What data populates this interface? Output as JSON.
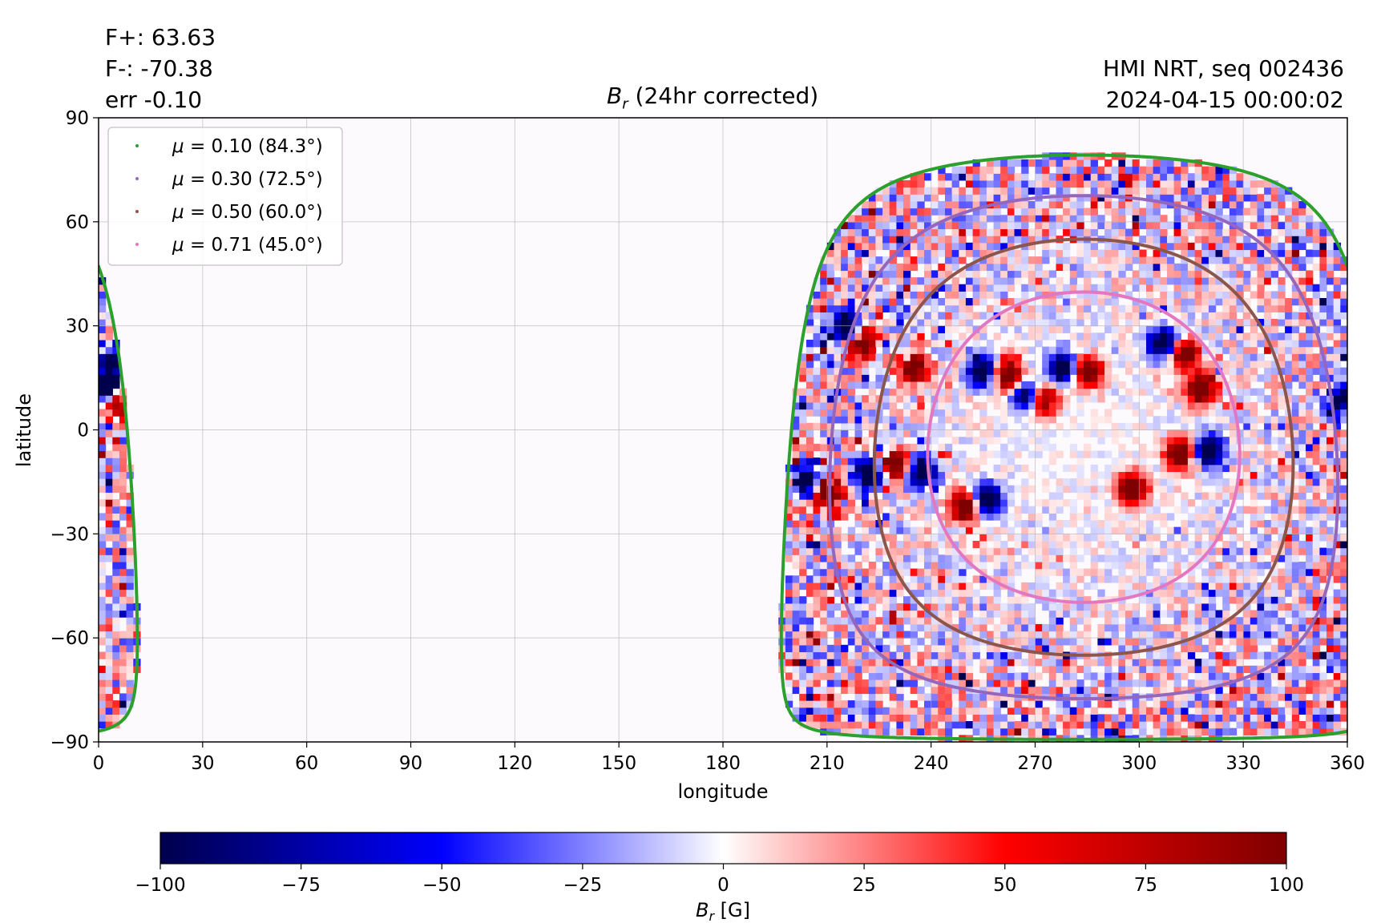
{
  "header": {
    "stats": [
      "F+: 63.63",
      "F-: -70.38",
      "err -0.10"
    ],
    "source": "HMI NRT, seq 002436",
    "timestamp": "2024-04-15 00:00:02",
    "title_symbol": "B",
    "title_subscript": "r",
    "title_rest": " (24hr corrected)"
  },
  "chart_data": {
    "type": "heatmap",
    "xlabel": "longitude",
    "ylabel": "latitude",
    "xlim": [
      0,
      360
    ],
    "ylim": [
      -90,
      90
    ],
    "xticks": [
      0,
      30,
      60,
      90,
      120,
      150,
      180,
      210,
      240,
      270,
      300,
      330,
      360
    ],
    "yticks": [
      -90,
      -60,
      -30,
      0,
      30,
      60,
      90
    ],
    "xtick_labels": [
      "0",
      "30",
      "60",
      "90",
      "120",
      "150",
      "180",
      "210",
      "240",
      "270",
      "300",
      "330",
      "360"
    ],
    "ytick_labels": [
      "−90",
      "−60",
      "−30",
      "0",
      "30",
      "60",
      "90"
    ],
    "grid": true,
    "legend_position": "top-left",
    "disk_center": {
      "lon": 284,
      "lat": -5
    },
    "series": [
      {
        "name": "μ = 0.10 (84.3°)",
        "mu": 0.1,
        "angle_deg": 84.3,
        "color": "#2ca02c"
      },
      {
        "name": "μ = 0.30 (72.5°)",
        "mu": 0.3,
        "angle_deg": 72.5,
        "color": "#9467bd"
      },
      {
        "name": "μ = 0.50 (60.0°)",
        "mu": 0.5,
        "angle_deg": 60.0,
        "color": "#8c564b"
      },
      {
        "name": "μ = 0.71 (45.0°)",
        "mu": 0.71,
        "angle_deg": 45.0,
        "color": "#e377c2"
      }
    ],
    "legend_mu_symbol": "μ",
    "legend_equals": " = ",
    "legend_values": [
      "0.10 (84.3°)",
      "0.30 (72.5°)",
      "0.50 (60.0°)",
      "0.71 (45.0°)"
    ],
    "active_regions": [
      {
        "lon": 220,
        "lat": 25,
        "sign": 1
      },
      {
        "lon": 215,
        "lat": 30,
        "sign": -1
      },
      {
        "lon": 235,
        "lat": 18,
        "sign": 1
      },
      {
        "lon": 255,
        "lat": 17,
        "sign": -1
      },
      {
        "lon": 262,
        "lat": 16,
        "sign": 1
      },
      {
        "lon": 278,
        "lat": 18,
        "sign": -1
      },
      {
        "lon": 285,
        "lat": 17,
        "sign": 1
      },
      {
        "lon": 268,
        "lat": 10,
        "sign": -1
      },
      {
        "lon": 272,
        "lat": 9,
        "sign": 1
      },
      {
        "lon": 307,
        "lat": 25,
        "sign": -1
      },
      {
        "lon": 313,
        "lat": 22,
        "sign": 1
      },
      {
        "lon": 318,
        "lat": 12,
        "sign": 1
      },
      {
        "lon": 205,
        "lat": -15,
        "sign": -1
      },
      {
        "lon": 210,
        "lat": -18,
        "sign": 1
      },
      {
        "lon": 222,
        "lat": -13,
        "sign": -1
      },
      {
        "lon": 230,
        "lat": -10,
        "sign": 1
      },
      {
        "lon": 237,
        "lat": -12,
        "sign": -1
      },
      {
        "lon": 250,
        "lat": -22,
        "sign": 1
      },
      {
        "lon": 256,
        "lat": -20,
        "sign": -1
      },
      {
        "lon": 312,
        "lat": -7,
        "sign": 1
      },
      {
        "lon": 320,
        "lat": -6,
        "sign": -1
      },
      {
        "lon": 298,
        "lat": -17,
        "sign": 1
      },
      {
        "lon": 4,
        "lat": 8,
        "sign": 1
      },
      {
        "lon": 3,
        "lat": 12,
        "sign": -1
      },
      {
        "lon": 5,
        "lat": 20,
        "sign": -1
      },
      {
        "lon": 358,
        "lat": 8,
        "sign": -1
      }
    ]
  },
  "colorbar": {
    "min": -100,
    "max": 100,
    "ticks": [
      -100,
      -75,
      -50,
      -25,
      0,
      25,
      50,
      75,
      100
    ],
    "tick_labels": [
      "−100",
      "−75",
      "−50",
      "−25",
      "0",
      "25",
      "50",
      "75",
      "100"
    ],
    "label_symbol": "B",
    "label_subscript": "r",
    "label_unit": " [G]",
    "colors": [
      "#00004c",
      "#0000ff",
      "#ffffff",
      "#ff0000",
      "#7f0000"
    ]
  }
}
